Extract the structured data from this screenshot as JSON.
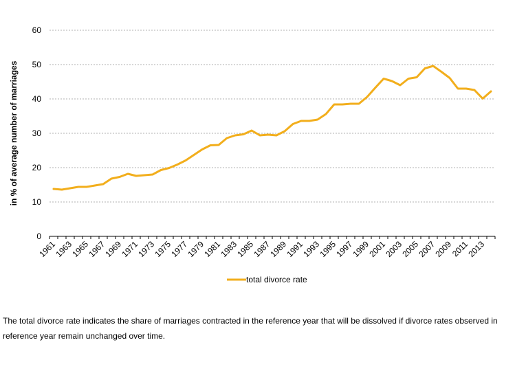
{
  "chart_data": {
    "type": "line",
    "xlabel": "",
    "ylabel": "in % of average number of marriages",
    "ylim": [
      0,
      60
    ],
    "yticks": [
      0,
      10,
      20,
      30,
      40,
      50,
      60
    ],
    "grid": true,
    "legend_position": "bottom",
    "line_color": "#F2AE1C",
    "x": [
      1961,
      1962,
      1963,
      1964,
      1965,
      1966,
      1967,
      1968,
      1969,
      1970,
      1971,
      1972,
      1973,
      1974,
      1975,
      1976,
      1977,
      1978,
      1979,
      1980,
      1981,
      1982,
      1983,
      1984,
      1985,
      1986,
      1987,
      1988,
      1989,
      1990,
      1991,
      1992,
      1993,
      1994,
      1995,
      1996,
      1997,
      1998,
      1999,
      2000,
      2001,
      2002,
      2003,
      2004,
      2005,
      2006,
      2007,
      2008,
      2009,
      2010,
      2011,
      2012,
      2013,
      2014
    ],
    "xtick_labels": [
      "1961",
      "1963",
      "1965",
      "1967",
      "1969",
      "1971",
      "1973",
      "1975",
      "1977",
      "1979",
      "1981",
      "1983",
      "1985",
      "1987",
      "1989",
      "1991",
      "1993",
      "1995",
      "1997",
      "1999",
      "2001",
      "2003",
      "2005",
      "2007",
      "2009",
      "2011",
      "2013"
    ],
    "series": [
      {
        "name": "total divorce rate",
        "values": [
          13.8,
          13.6,
          14.0,
          14.4,
          14.4,
          14.8,
          15.2,
          16.8,
          17.3,
          18.2,
          17.6,
          17.8,
          18.0,
          19.3,
          19.9,
          20.9,
          22.1,
          23.7,
          25.3,
          26.5,
          26.6,
          28.6,
          29.4,
          29.7,
          30.8,
          29.4,
          29.6,
          29.4,
          30.6,
          32.7,
          33.6,
          33.6,
          34.0,
          35.6,
          38.4,
          38.4,
          38.6,
          38.6,
          40.6,
          43.3,
          45.9,
          45.2,
          44.0,
          45.9,
          46.3,
          48.9,
          49.6,
          47.9,
          46.1,
          43.0,
          43.0,
          42.6,
          40.1,
          42.2
        ]
      }
    ]
  },
  "footnote": {
    "line1": "The total divorce rate indicates the share of marriages contracted in the reference year that will be dissolved if divorce rates observed in",
    "line2": "reference year remain unchanged over time."
  }
}
